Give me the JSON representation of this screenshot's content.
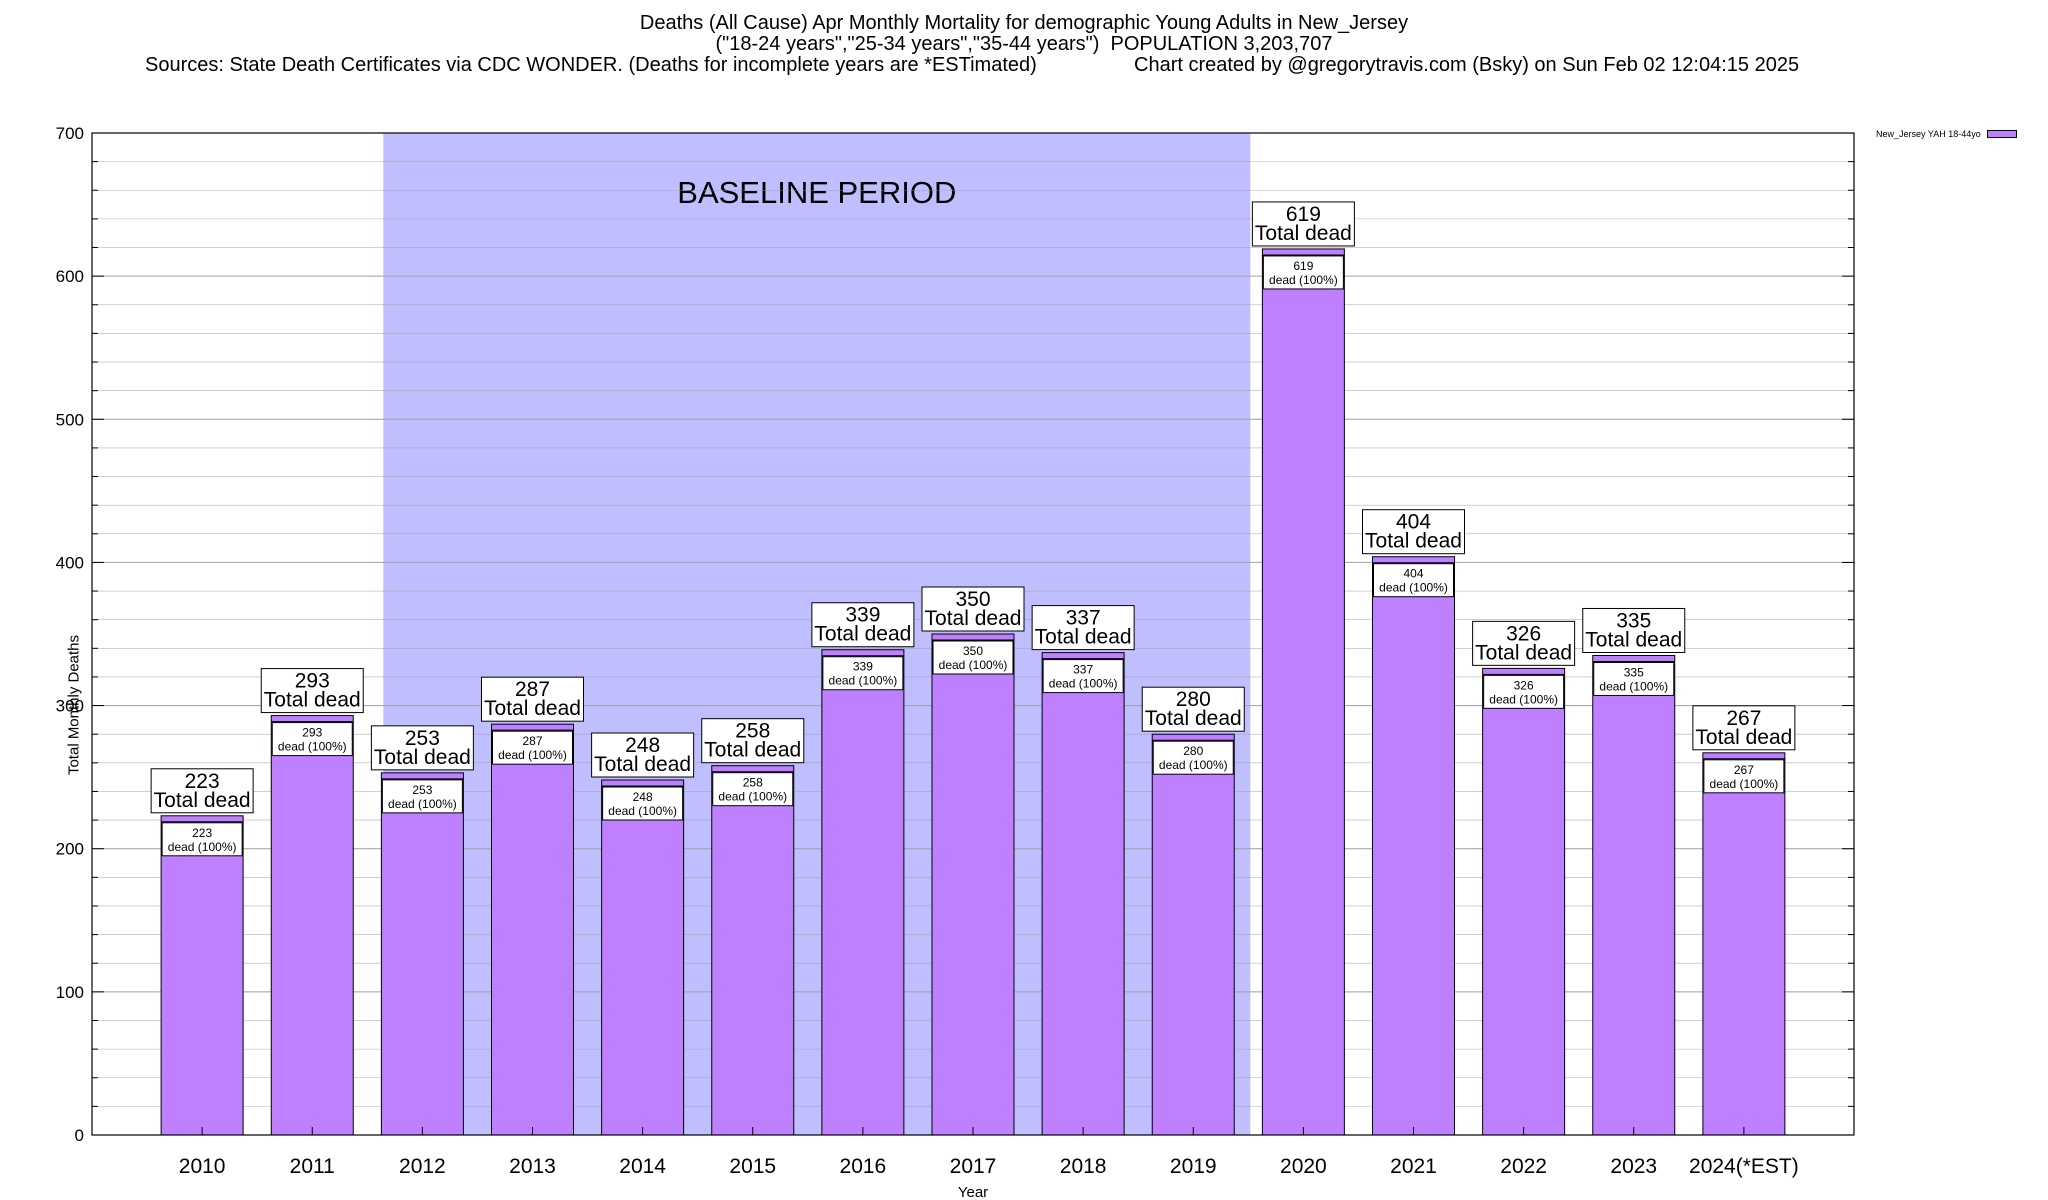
{
  "chart_data": {
    "type": "bar",
    "title_lines": [
      "Deaths (All Cause) Apr Monthly Mortality for demographic Young Adults in New_Jersey",
      "(\"18-24 years\",\"25-34 years\",\"35-44 years\")  POPULATION 3,203,707"
    ],
    "sources": "Sources: State Death Certificates via CDC WONDER. (Deaths for incomplete years are *ESTimated)",
    "credit": "Chart created by @gregorytravis.com (Bsky) on Sun Feb 02 12:04:15 2025",
    "xlabel": "Year",
    "ylabel": "Total Monthly Deaths",
    "ylim": [
      0,
      700
    ],
    "yticks": [
      0,
      100,
      200,
      300,
      400,
      500,
      600,
      700
    ],
    "categories": [
      "2010",
      "2011",
      "2012",
      "2013",
      "2014",
      "2015",
      "2016",
      "2017",
      "2018",
      "2019",
      "2020",
      "2021",
      "2022",
      "2023",
      "2024(*EST)"
    ],
    "series": [
      {
        "name": "New_Jersey YAH 18-44yo",
        "values": [
          223,
          293,
          253,
          287,
          248,
          258,
          339,
          350,
          337,
          280,
          619,
          404,
          326,
          335,
          267
        ]
      }
    ],
    "label_total_suffix": "Total dead",
    "label_inner_suffix": "dead (100%)",
    "baseline": {
      "label": "BASELINE PERIOD",
      "from": "2012",
      "to": "2019"
    },
    "grid": true,
    "legend_position": "top-right",
    "colors": {
      "bar": "#bf80ff",
      "baseline": "#bfbfff",
      "grid": "#a0a0a0"
    }
  }
}
